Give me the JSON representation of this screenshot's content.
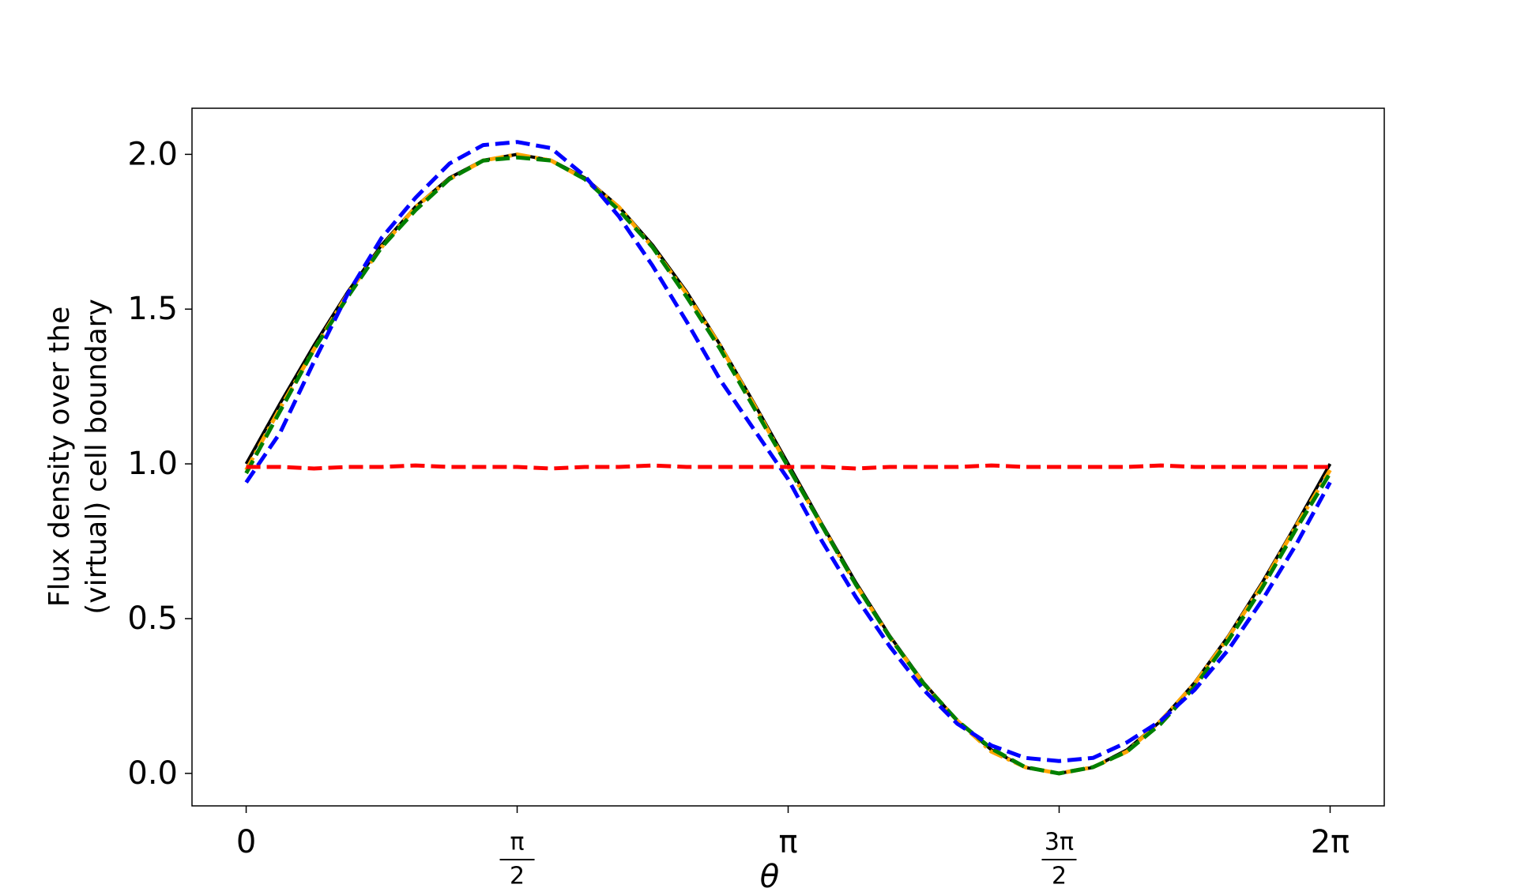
{
  "chart_data": {
    "type": "line",
    "ylabel": [
      "Flux density over the",
      "(virtual) cell boundary"
    ],
    "xlabel": "θ",
    "x": [
      0,
      0.196,
      0.393,
      0.589,
      0.785,
      0.982,
      1.178,
      1.374,
      1.571,
      1.767,
      1.963,
      2.16,
      2.356,
      2.553,
      2.749,
      2.945,
      3.142,
      3.338,
      3.534,
      3.731,
      3.927,
      4.123,
      4.32,
      4.516,
      4.712,
      4.909,
      5.105,
      5.301,
      5.498,
      5.694,
      5.89,
      6.087,
      6.283
    ],
    "series": [
      {
        "color": "#000000",
        "dash": "solid",
        "values": [
          1,
          1.195,
          1.383,
          1.556,
          1.707,
          1.831,
          1.924,
          1.981,
          2,
          1.981,
          1.924,
          1.831,
          1.707,
          1.556,
          1.383,
          1.195,
          1,
          0.805,
          0.617,
          0.444,
          0.293,
          0.169,
          0.076,
          0.019,
          0,
          0.019,
          0.076,
          0.169,
          0.293,
          0.444,
          0.617,
          0.805,
          1
        ]
      },
      {
        "color": "#ffa500",
        "dash": "dashdot",
        "values": [
          0.98,
          1.18,
          1.37,
          1.55,
          1.7,
          1.83,
          1.92,
          1.98,
          2,
          1.98,
          1.92,
          1.83,
          1.7,
          1.55,
          1.38,
          1.19,
          0.99,
          0.8,
          0.61,
          0.44,
          0.29,
          0.17,
          0.07,
          0.02,
          0,
          0.02,
          0.07,
          0.17,
          0.29,
          0.44,
          0.61,
          0.8,
          0.98
        ]
      },
      {
        "color": "#008000",
        "dash": "dashed",
        "values": [
          0.97,
          1.17,
          1.37,
          1.54,
          1.7,
          1.82,
          1.92,
          1.98,
          1.99,
          1.98,
          1.92,
          1.82,
          1.7,
          1.54,
          1.37,
          1.18,
          0.99,
          0.8,
          0.61,
          0.44,
          0.29,
          0.17,
          0.08,
          0.02,
          0,
          0.02,
          0.07,
          0.16,
          0.28,
          0.43,
          0.6,
          0.79,
          0.97
        ]
      },
      {
        "color": "#0000ff",
        "dash": "dashed",
        "values": [
          0.94,
          1.1,
          1.33,
          1.55,
          1.73,
          1.86,
          1.97,
          2.03,
          2.04,
          2.02,
          1.93,
          1.8,
          1.64,
          1.46,
          1.27,
          1.11,
          0.95,
          0.75,
          0.57,
          0.41,
          0.27,
          0.16,
          0.09,
          0.05,
          0.04,
          0.05,
          0.1,
          0.17,
          0.27,
          0.4,
          0.56,
          0.74,
          0.94
        ]
      },
      {
        "color": "#ff0000",
        "dash": "dashed",
        "values": [
          0.99,
          0.99,
          0.985,
          0.99,
          0.99,
          0.995,
          0.99,
          0.99,
          0.99,
          0.985,
          0.99,
          0.99,
          0.995,
          0.99,
          0.99,
          0.99,
          0.99,
          0.99,
          0.985,
          0.99,
          0.99,
          0.99,
          0.995,
          0.99,
          0.99,
          0.99,
          0.99,
          0.995,
          0.99,
          0.99,
          0.99,
          0.99,
          0.99
        ]
      }
    ],
    "xlim": [
      -0.314,
      6.597
    ],
    "ylim": [
      -0.105,
      2.149
    ],
    "xticks": [
      0,
      {
        "value": 1.5708,
        "label": "π/2"
      },
      {
        "value": 3.1416,
        "label": "π"
      },
      {
        "value": 4.7124,
        "label": "3π/2"
      },
      {
        "value": 6.2832,
        "label": "2π"
      }
    ],
    "yticks": [
      {
        "value": 0,
        "label": "0.0"
      },
      {
        "value": 0.5,
        "label": "0.5"
      },
      {
        "value": 1,
        "label": "1.0"
      },
      {
        "value": 1.5,
        "label": "1.5"
      },
      {
        "value": 2,
        "label": "2.0"
      }
    ]
  }
}
